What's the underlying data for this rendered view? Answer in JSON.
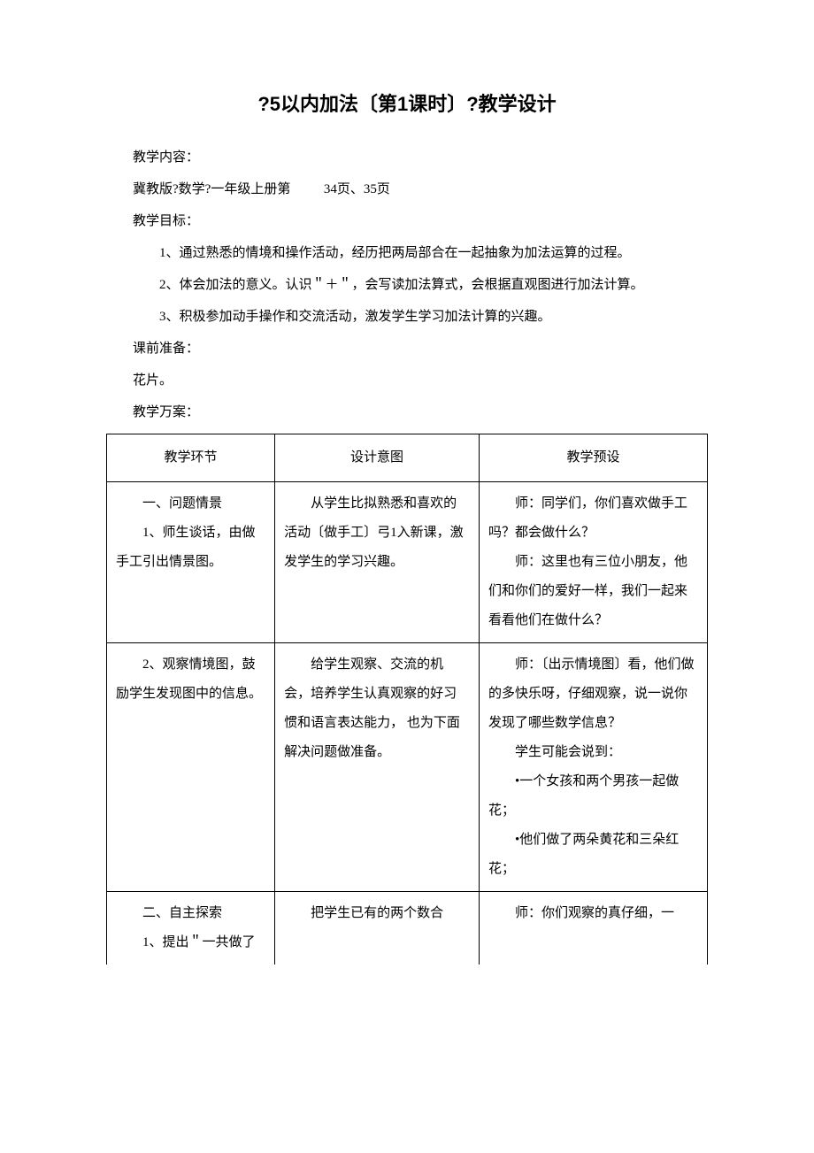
{
  "title": "?5以内加法〔第1课时〕?教学设计",
  "labels": {
    "content": "教学内容：",
    "content_body": "冀教版?数学?一年级上册第",
    "content_pages": "34页、35页",
    "goals": "教学目标：",
    "goal_items": [
      {
        "num": "1、",
        "text": "通过熟悉的情境和操作活动，经历把两局部合在一起抽象为加法运算的过程。"
      },
      {
        "num": "2、",
        "text": "体会加法的意义。认识＂＋＂，会写读加法算式，会根据直观图进行加法计算。"
      },
      {
        "num": "3、",
        "text": "积极参加动手操作和交流活动，激发学生学习加法计算的兴趣。"
      }
    ],
    "prep": "课前准备：",
    "prep_body": "花片。",
    "plan": "教学万案："
  },
  "table": {
    "headers": [
      "教学环节",
      "设计意图",
      "教学预设"
    ],
    "rows": [
      {
        "c1": [
          "一、问题情景",
          "1、师生谈话，由做手工引出情景图。"
        ],
        "c1_hang": true,
        "c2": [
          "从学生比拟熟悉和喜欢的活动〔做手工〕弓1入新课，激发学生的学习兴趣。"
        ],
        "c3": [
          "师：同学们，你们喜欢做手工吗？都会做什么？",
          "师：这里也有三位小朋友，他们和你们的爱好一样，我们一起来看看他们在做什么？"
        ]
      },
      {
        "c1": [
          "2、观察情境图，鼓励学生发现图中的信息。"
        ],
        "c1_hang": true,
        "c2": [
          "给学生观察、交流的机会，培养学生认真观察的好习惯和语言表达能力， 也为下面解决问题做准备。"
        ],
        "c3": [
          "师：〔出示情境图〕看，他们做的多快乐呀，仔细观察，说一说你发现了哪些数学信息？",
          "学生可能会说到：",
          "•一个女孩和两个男孩一起做花；",
          "•他们做了两朵黄花和三朵红花；",
          ""
        ]
      },
      {
        "c1": [
          "二、自主探索",
          "1、提出＂一共做了"
        ],
        "c2": [
          "把学生已有的两个数合"
        ],
        "c3": [
          "师：你们观察的真仔细，一"
        ],
        "last": true
      }
    ]
  },
  "style": {
    "background": "#ffffff",
    "text_color": "#000000",
    "title_fontsize": 22,
    "body_fontsize": 15,
    "line_height": 2.4,
    "border_color": "#000000",
    "col_widths": [
      "28%",
      "34%",
      "38%"
    ]
  }
}
